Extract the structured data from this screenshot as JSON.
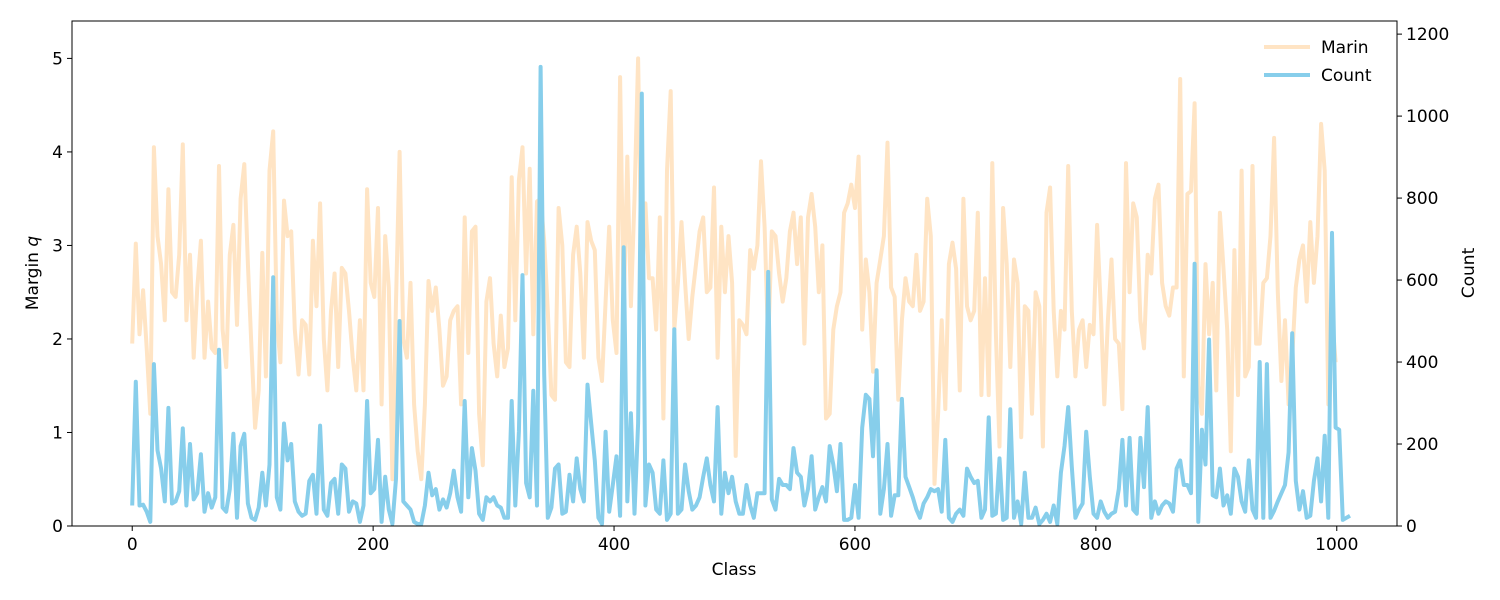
{
  "chart_data": {
    "type": "line",
    "title": "",
    "xlabel": "Class",
    "ylabel_left": "Margin q",
    "ylabel_left_main": "Margin ",
    "ylabel_left_var": "q",
    "ylabel_right": "Count",
    "xlim": [
      -50,
      1050
    ],
    "ylim_left": [
      0,
      5.4
    ],
    "ylim_right": [
      0,
      1232
    ],
    "x_ticks": [
      0,
      200,
      400,
      600,
      800,
      1000
    ],
    "y_left_ticks": [
      0,
      1,
      2,
      3,
      4,
      5
    ],
    "y_right_ticks": [
      0,
      200,
      400,
      600,
      800,
      1000,
      1200
    ],
    "grid": false,
    "legend_position": "top-right",
    "x_step": 3,
    "series": [
      {
        "name": "Marin",
        "axis": "left",
        "color": "#ffe4c4",
        "values": [
          1.95,
          3.02,
          2.05,
          2.52,
          1.9,
          1.2,
          4.05,
          3.1,
          2.8,
          2.2,
          3.6,
          2.5,
          2.45,
          2.9,
          4.08,
          2.2,
          2.9,
          1.8,
          2.55,
          3.05,
          1.8,
          2.4,
          1.9,
          1.85,
          3.85,
          2.1,
          1.7,
          2.9,
          3.22,
          2.15,
          3.5,
          3.87,
          2.8,
          1.9,
          1.05,
          1.45,
          2.92,
          1.6,
          3.8,
          4.22,
          2.2,
          1.75,
          3.48,
          3.1,
          3.15,
          2.1,
          1.62,
          2.2,
          2.15,
          1.62,
          3.05,
          2.35,
          3.45,
          2.0,
          1.45,
          2.3,
          2.7,
          1.7,
          2.76,
          2.7,
          2.3,
          1.8,
          1.45,
          2.2,
          1.45,
          3.6,
          2.6,
          2.45,
          3.4,
          1.3,
          3.1,
          2.55,
          0.5,
          2.4,
          4.0,
          2.0,
          1.8,
          2.6,
          1.3,
          0.8,
          0.5,
          1.3,
          2.62,
          2.3,
          2.55,
          2.1,
          1.5,
          1.6,
          2.2,
          2.3,
          2.35,
          1.3,
          3.3,
          1.85,
          3.15,
          3.2,
          1.2,
          0.65,
          2.4,
          2.65,
          1.95,
          1.6,
          2.25,
          1.7,
          1.9,
          3.73,
          2.2,
          3.7,
          4.05,
          2.7,
          3.82,
          2.05,
          3.47,
          3.5,
          3.05,
          2.3,
          1.4,
          1.35,
          3.4,
          3.0,
          1.75,
          1.7,
          2.9,
          3.2,
          2.7,
          1.8,
          3.25,
          3.05,
          2.95,
          1.8,
          1.55,
          2.4,
          3.2,
          2.2,
          1.85,
          4.8,
          2.3,
          3.95,
          2.35,
          3.5,
          5.0,
          2.6,
          3.45,
          2.65,
          2.65,
          2.1,
          3.3,
          1.15,
          3.8,
          4.65,
          2.1,
          2.6,
          3.25,
          2.6,
          2.0,
          2.45,
          2.8,
          3.15,
          3.3,
          2.5,
          2.55,
          3.62,
          1.8,
          3.2,
          2.5,
          3.1,
          2.6,
          0.75,
          2.2,
          2.15,
          2.05,
          2.95,
          2.75,
          3.0,
          3.9,
          3.2,
          1.95,
          3.15,
          3.1,
          2.7,
          2.4,
          2.65,
          3.15,
          3.35,
          2.8,
          3.3,
          1.95,
          3.3,
          3.55,
          3.2,
          2.5,
          3.0,
          1.15,
          1.2,
          2.1,
          2.35,
          2.5,
          3.35,
          3.45,
          3.65,
          3.4,
          3.95,
          2.1,
          2.85,
          2.5,
          1.65,
          2.6,
          2.85,
          3.1,
          4.1,
          2.55,
          2.45,
          1.35,
          2.2,
          2.65,
          2.4,
          2.35,
          2.9,
          2.3,
          2.4,
          3.5,
          3.1,
          0.45,
          1.2,
          2.2,
          1.25,
          2.8,
          3.03,
          2.75,
          1.45,
          3.5,
          2.35,
          2.2,
          2.3,
          3.35,
          1.4,
          2.65,
          1.4,
          3.88,
          2.05,
          0.85,
          3.4,
          2.8,
          1.7,
          2.85,
          2.6,
          0.95,
          2.35,
          2.3,
          1.2,
          2.5,
          2.35,
          0.85,
          3.35,
          3.62,
          2.3,
          1.6,
          2.3,
          2.1,
          3.85,
          2.3,
          1.6,
          2.1,
          2.2,
          1.7,
          2.15,
          2.05,
          3.22,
          2.35,
          1.3,
          2.2,
          2.85,
          2.0,
          1.95,
          1.25,
          3.88,
          2.5,
          3.45,
          3.3,
          2.2,
          1.9,
          2.9,
          2.7,
          3.5,
          3.65,
          2.6,
          2.35,
          2.25,
          2.55,
          2.55,
          4.78,
          1.6,
          3.55,
          3.58,
          4.52,
          1.5,
          1.2,
          2.8,
          2.05,
          2.6,
          1.45,
          3.35,
          2.75,
          2.1,
          0.8,
          2.95,
          1.4,
          3.8,
          1.6,
          1.7,
          3.85,
          1.95,
          1.95,
          2.6,
          2.65,
          3.1,
          4.15,
          2.5,
          1.55,
          2.2,
          1.3,
          1.8,
          2.55,
          2.85,
          3.0,
          2.4,
          3.25,
          2.6,
          3.1,
          4.3,
          3.8,
          1.3,
          2.25,
          1.75
        ]
      },
      {
        "name": "Count",
        "axis": "right",
        "color": "#87ceeb",
        "values": [
          50,
          352,
          50,
          52,
          35,
          10,
          395,
          185,
          140,
          60,
          288,
          55,
          60,
          85,
          238,
          50,
          200,
          65,
          80,
          175,
          35,
          80,
          45,
          70,
          430,
          45,
          35,
          90,
          225,
          20,
          195,
          225,
          55,
          20,
          15,
          45,
          130,
          50,
          150,
          607,
          70,
          40,
          250,
          160,
          200,
          60,
          35,
          25,
          30,
          110,
          125,
          30,
          245,
          40,
          25,
          105,
          115,
          30,
          150,
          140,
          35,
          60,
          55,
          10,
          50,
          305,
          80,
          90,
          210,
          10,
          120,
          40,
          5,
          115,
          500,
          60,
          50,
          40,
          10,
          5,
          5,
          50,
          130,
          75,
          90,
          40,
          65,
          45,
          80,
          135,
          70,
          35,
          305,
          70,
          190,
          135,
          30,
          15,
          70,
          60,
          70,
          50,
          45,
          20,
          20,
          305,
          50,
          230,
          612,
          105,
          70,
          330,
          50,
          1120,
          370,
          20,
          45,
          140,
          150,
          30,
          35,
          125,
          60,
          165,
          90,
          60,
          345,
          250,
          160,
          20,
          5,
          230,
          35,
          100,
          170,
          25,
          680,
          60,
          275,
          30,
          250,
          1055,
          50,
          150,
          130,
          40,
          30,
          160,
          15,
          30,
          480,
          30,
          40,
          150,
          85,
          40,
          50,
          70,
          120,
          165,
          100,
          60,
          290,
          30,
          130,
          80,
          120,
          60,
          30,
          30,
          100,
          50,
          20,
          80,
          80,
          80,
          620,
          65,
          40,
          115,
          100,
          100,
          90,
          190,
          130,
          120,
          50,
          90,
          170,
          40,
          70,
          95,
          60,
          195,
          150,
          85,
          200,
          15,
          15,
          20,
          100,
          20,
          240,
          320,
          310,
          170,
          380,
          30,
          90,
          200,
          25,
          75,
          75,
          310,
          120,
          95,
          70,
          40,
          20,
          55,
          70,
          90,
          85,
          90,
          35,
          210,
          20,
          10,
          30,
          40,
          25,
          140,
          120,
          105,
          110,
          20,
          40,
          265,
          25,
          30,
          165,
          15,
          20,
          285,
          20,
          60,
          5,
          130,
          20,
          20,
          45,
          5,
          15,
          30,
          10,
          50,
          5,
          130,
          195,
          290,
          145,
          20,
          40,
          55,
          230,
          120,
          30,
          20,
          60,
          35,
          20,
          30,
          35,
          90,
          210,
          50,
          215,
          40,
          30,
          215,
          95,
          290,
          20,
          60,
          30,
          50,
          60,
          55,
          35,
          140,
          160,
          100,
          100,
          80,
          640,
          10,
          235,
          150,
          455,
          75,
          70,
          140,
          50,
          75,
          30,
          140,
          120,
          60,
          35,
          160,
          40,
          20,
          400,
          20,
          395,
          20,
          37,
          60,
          80,
          100,
          180,
          470,
          110,
          40,
          85,
          20,
          25,
          110,
          165,
          60,
          220,
          20,
          715,
          240,
          235,
          15,
          20,
          25
        ]
      }
    ]
  }
}
